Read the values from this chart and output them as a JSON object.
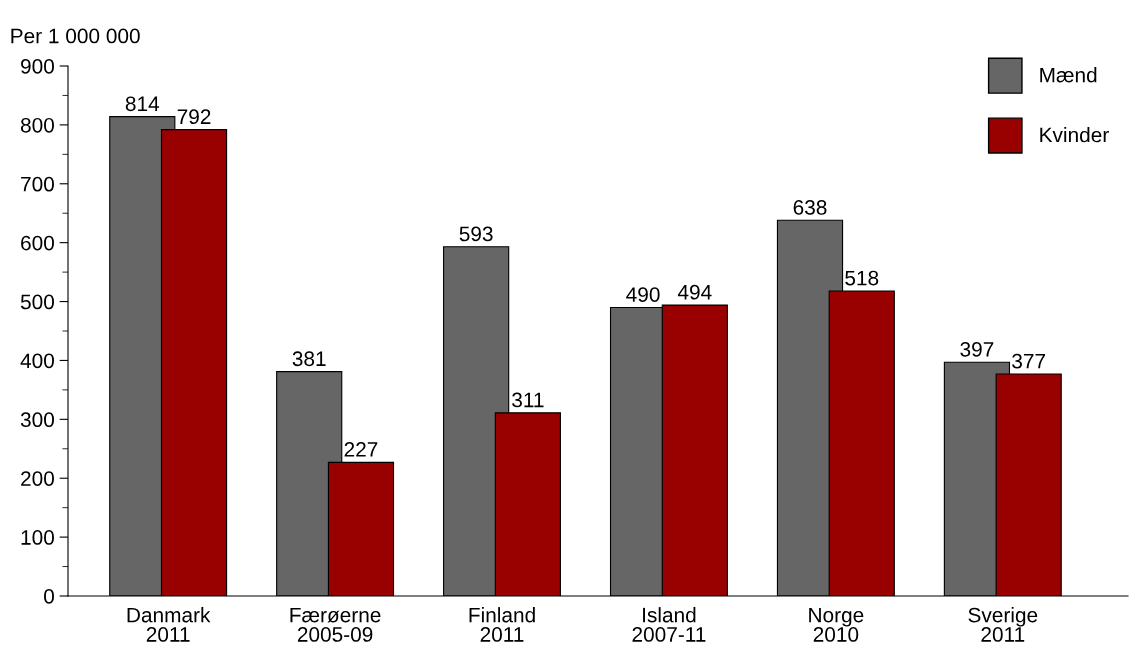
{
  "chart_data": {
    "type": "bar",
    "ylabel": "Per 1 000 000",
    "categories": [
      "Danmark\n2011",
      "Færøerne\n2005-09",
      "Finland\n2011",
      "Island\n2007-11",
      "Norge\n2010",
      "Sverige\n2011"
    ],
    "series": [
      {
        "name": "Mænd",
        "color": "#666666",
        "values": [
          814,
          381,
          593,
          490,
          638,
          397
        ]
      },
      {
        "name": "Kvinder",
        "color": "#990000",
        "values": [
          792,
          227,
          311,
          494,
          518,
          377
        ]
      }
    ],
    "ylim": [
      0,
      900
    ],
    "yticks": [
      0,
      100,
      200,
      300,
      400,
      500,
      600,
      700,
      800,
      900
    ],
    "data_labels": true,
    "legend": "top right",
    "grid": false
  }
}
